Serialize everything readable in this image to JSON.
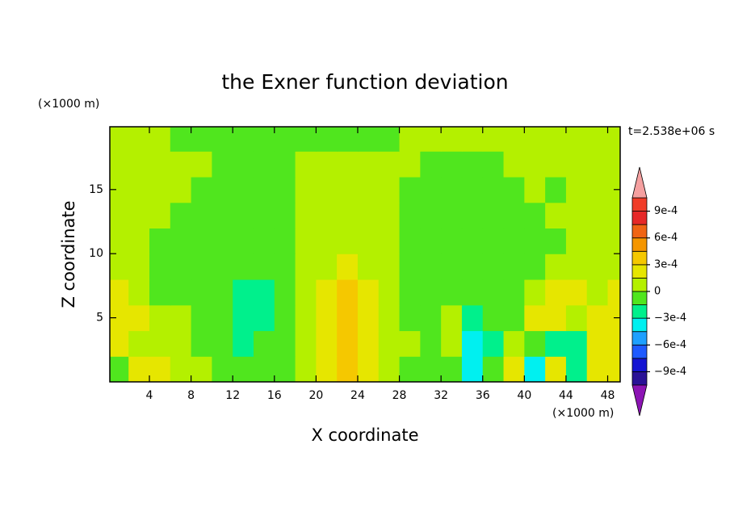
{
  "chart_data": {
    "type": "contour",
    "title": "the Exner function deviation",
    "xlabel": "X coordinate",
    "ylabel": "Z coordinate",
    "xunit": "(×1000 m)",
    "yunit": "(×1000 m)",
    "annotation": "t=2.538e+06 s",
    "xlim": [
      0.2,
      49.2
    ],
    "ylim": [
      0,
      19.9
    ],
    "xticks": [
      4,
      8,
      12,
      16,
      20,
      24,
      28,
      32,
      36,
      40,
      44,
      48
    ],
    "yticks": [
      5,
      10,
      15
    ],
    "x": [
      1,
      3,
      5,
      7,
      9,
      11,
      13,
      15,
      17,
      19,
      21,
      23,
      25,
      27,
      29,
      31,
      33,
      35,
      37,
      39,
      41,
      43,
      45,
      47,
      49
    ],
    "y": [
      1,
      3,
      5,
      7,
      9,
      11,
      13,
      15,
      17,
      19
    ],
    "values": [
      [
        -7e-05,
        0.0002,
        0.0002,
        7e-05,
        7e-05,
        -7e-05,
        -7e-05,
        -7e-05,
        -7e-05,
        7e-05,
        0.0002,
        0.0004,
        0.0002,
        7e-05,
        -7e-05,
        -7e-05,
        -7e-05,
        -0.0004,
        -7e-05,
        0.0002,
        -0.0004,
        0.0002,
        -0.0002,
        0.0002,
        0.0002
      ],
      [
        0.0002,
        7e-05,
        7e-05,
        7e-05,
        -7e-05,
        -7e-05,
        -0.0002,
        -7e-05,
        -7e-05,
        7e-05,
        0.0002,
        0.0004,
        0.0002,
        7e-05,
        7e-05,
        -7e-05,
        7e-05,
        -0.0004,
        -0.0002,
        7e-05,
        -7e-05,
        -0.0002,
        -0.0002,
        0.0002,
        0.0002
      ],
      [
        0.0002,
        0.0002,
        7e-05,
        7e-05,
        -7e-05,
        -7e-05,
        -0.0002,
        -0.0002,
        -7e-05,
        7e-05,
        0.0002,
        0.0004,
        0.0002,
        7e-05,
        -7e-05,
        -7e-05,
        7e-05,
        -0.0002,
        -7e-05,
        -7e-05,
        0.0002,
        0.0002,
        7e-05,
        0.0002,
        0.0002
      ],
      [
        0.0002,
        7e-05,
        -7e-05,
        -7e-05,
        -7e-05,
        -7e-05,
        -0.0002,
        -0.0002,
        -7e-05,
        7e-05,
        0.0002,
        0.0004,
        0.0002,
        7e-05,
        -7e-05,
        -7e-05,
        -7e-05,
        -7e-05,
        -7e-05,
        -7e-05,
        7e-05,
        0.0002,
        0.0002,
        7e-05,
        0.0002
      ],
      [
        7e-05,
        7e-05,
        -7e-05,
        -7e-05,
        -7e-05,
        -7e-05,
        -7e-05,
        -7e-05,
        -7e-05,
        7e-05,
        7e-05,
        0.0002,
        7e-05,
        7e-05,
        -7e-05,
        -7e-05,
        -7e-05,
        -7e-05,
        -7e-05,
        -7e-05,
        -7e-05,
        7e-05,
        7e-05,
        7e-05,
        7e-05
      ],
      [
        7e-05,
        7e-05,
        -7e-05,
        -7e-05,
        -7e-05,
        -7e-05,
        -7e-05,
        -7e-05,
        -7e-05,
        7e-05,
        7e-05,
        7e-05,
        7e-05,
        7e-05,
        -7e-05,
        -7e-05,
        -7e-05,
        -7e-05,
        -7e-05,
        -7e-05,
        -7e-05,
        -7e-05,
        7e-05,
        7e-05,
        7e-05
      ],
      [
        7e-05,
        7e-05,
        7e-05,
        -7e-05,
        -7e-05,
        -7e-05,
        -7e-05,
        -7e-05,
        -7e-05,
        7e-05,
        7e-05,
        7e-05,
        7e-05,
        7e-05,
        -7e-05,
        -7e-05,
        -7e-05,
        -7e-05,
        -7e-05,
        -7e-05,
        -7e-05,
        7e-05,
        7e-05,
        7e-05,
        7e-05
      ],
      [
        7e-05,
        7e-05,
        7e-05,
        7e-05,
        -7e-05,
        -7e-05,
        -7e-05,
        -7e-05,
        -7e-05,
        7e-05,
        7e-05,
        7e-05,
        7e-05,
        7e-05,
        -7e-05,
        -7e-05,
        -7e-05,
        -7e-05,
        -7e-05,
        -7e-05,
        7e-05,
        -7e-05,
        7e-05,
        7e-05,
        7e-05
      ],
      [
        7e-05,
        7e-05,
        7e-05,
        7e-05,
        7e-05,
        -7e-05,
        -7e-05,
        -7e-05,
        -7e-05,
        7e-05,
        7e-05,
        7e-05,
        7e-05,
        7e-05,
        7e-05,
        -7e-05,
        -7e-05,
        -7e-05,
        -7e-05,
        7e-05,
        7e-05,
        7e-05,
        7e-05,
        7e-05,
        7e-05
      ],
      [
        7e-05,
        7e-05,
        7e-05,
        -7e-05,
        -7e-05,
        -7e-05,
        -7e-05,
        -7e-05,
        -7e-05,
        -7e-05,
        -7e-05,
        -7e-05,
        -7e-05,
        -7e-05,
        7e-05,
        7e-05,
        7e-05,
        7e-05,
        7e-05,
        7e-05,
        7e-05,
        7e-05,
        7e-05,
        7e-05,
        7e-05
      ]
    ],
    "levels": [
      -0.00105,
      -0.0009,
      -0.00075,
      -0.0006,
      -0.00045,
      -0.0003,
      -0.00015,
      0,
      0.00015,
      0.0003,
      0.00045,
      0.0006,
      0.00075,
      0.0009,
      0.00105
    ],
    "colors": [
      "#2a1296",
      "#1414d2",
      "#1e5aff",
      "#1ea0ff",
      "#00f0f0",
      "#00f08c",
      "#50e61e",
      "#b4f000",
      "#e6e600",
      "#f5c800",
      "#f59600",
      "#f06414",
      "#e62828",
      "#f03c28"
    ],
    "extend_colors": [
      "#8c14b4",
      "#f5a0a0"
    ],
    "cticks": [
      {
        "value": 0.0009,
        "label": "9e-4"
      },
      {
        "value": 0.0006,
        "label": "6e-4"
      },
      {
        "value": 0.0003,
        "label": "3e-4"
      },
      0,
      {
        "value": -0.0003,
        "label": "−3e-4"
      },
      {
        "value": -0.0006,
        "label": "−6e-4"
      },
      {
        "value": -0.0009,
        "label": "−9e-4"
      }
    ]
  }
}
